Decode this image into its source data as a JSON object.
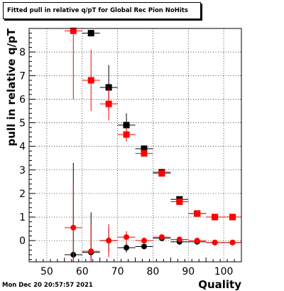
{
  "title": "Fitted pull in relative q/pT  for Global Rec Pion NoHits",
  "timestamp": "Mon Dec 20 20:57:57 2021",
  "chart_data": {
    "type": "scatter",
    "title": "Fitted pull in relative q/pT  for Global Rec Pion NoHits",
    "xlabel": "Quality",
    "ylabel": "pull in relative q/pT",
    "xlim": [
      45,
      105
    ],
    "ylim": [
      -0.9,
      9.0
    ],
    "grid": true,
    "x_ticks": [
      50,
      60,
      70,
      80,
      90,
      100
    ],
    "x_tick_labels": [
      "50",
      "60",
      "70",
      "80",
      "90",
      "100"
    ],
    "y_ticks": [
      0,
      1,
      2,
      3,
      4,
      5,
      6,
      7,
      8
    ],
    "y_tick_labels": [
      "0",
      "1",
      "2",
      "3",
      "4",
      "5",
      "6",
      "7",
      "8"
    ],
    "series": [
      {
        "color": "#000000",
        "marker": "square",
        "points": [
          {
            "x": 62.5,
            "y": 8.8,
            "ey": 0.0
          },
          {
            "x": 67.5,
            "y": 6.5,
            "ey": 0.95
          },
          {
            "x": 72.5,
            "y": 4.9,
            "ey": 0.5
          },
          {
            "x": 77.5,
            "y": 3.9,
            "ey": 0.12
          },
          {
            "x": 82.5,
            "y": 2.9,
            "ey": 0.07
          },
          {
            "x": 87.5,
            "y": 1.75,
            "ey": 0.05
          },
          {
            "x": 92.5,
            "y": 1.15,
            "ey": 0.03
          },
          {
            "x": 97.5,
            "y": 1.0,
            "ey": 0.02
          },
          {
            "x": 102.5,
            "y": 1.0,
            "ey": 0.02
          }
        ]
      },
      {
        "color": "#ff0000",
        "marker": "square",
        "points": [
          {
            "x": 57.5,
            "y": 8.9,
            "ey": 2.9
          },
          {
            "x": 62.5,
            "y": 6.8,
            "ey": 1.3
          },
          {
            "x": 67.5,
            "y": 5.8,
            "ey": 0.7
          },
          {
            "x": 72.5,
            "y": 4.5,
            "ey": 0.3
          },
          {
            "x": 77.5,
            "y": 3.7,
            "ey": 0.1
          },
          {
            "x": 82.5,
            "y": 2.85,
            "ey": 0.06
          },
          {
            "x": 87.5,
            "y": 1.65,
            "ey": 0.05
          },
          {
            "x": 92.5,
            "y": 1.15,
            "ey": 0.03
          },
          {
            "x": 97.5,
            "y": 1.0,
            "ey": 0.02
          },
          {
            "x": 102.5,
            "y": 1.0,
            "ey": 0.02
          }
        ]
      },
      {
        "color": "#000000",
        "marker": "circle",
        "points": [
          {
            "x": 57.5,
            "y": -0.6,
            "ey": 3.9
          },
          {
            "x": 62.5,
            "y": -0.5,
            "ey": 1.7
          },
          {
            "x": 67.5,
            "y": 0.0,
            "ey": 0.5
          },
          {
            "x": 72.5,
            "y": -0.3,
            "ey": 0.2
          },
          {
            "x": 77.5,
            "y": -0.25,
            "ey": 0.12
          },
          {
            "x": 82.5,
            "y": 0.1,
            "ey": 0.06
          },
          {
            "x": 87.5,
            "y": -0.05,
            "ey": 0.04
          },
          {
            "x": 92.5,
            "y": -0.05,
            "ey": 0.03
          },
          {
            "x": 97.5,
            "y": -0.08,
            "ey": 0.02
          },
          {
            "x": 102.5,
            "y": -0.08,
            "ey": 0.02
          }
        ]
      },
      {
        "color": "#ff0000",
        "marker": "circle",
        "points": [
          {
            "x": 57.5,
            "y": 0.55,
            "ey": 1.8
          },
          {
            "x": 62.5,
            "y": -0.45,
            "ey": 1.1
          },
          {
            "x": 67.5,
            "y": 0.0,
            "ey": 0.7
          },
          {
            "x": 72.5,
            "y": 0.15,
            "ey": 0.25
          },
          {
            "x": 77.5,
            "y": 0.0,
            "ey": 0.1
          },
          {
            "x": 82.5,
            "y": 0.15,
            "ey": 0.06
          },
          {
            "x": 87.5,
            "y": 0.05,
            "ey": 0.04
          },
          {
            "x": 92.5,
            "y": 0.0,
            "ey": 0.03
          },
          {
            "x": 97.5,
            "y": -0.08,
            "ey": 0.02
          },
          {
            "x": 102.5,
            "y": -0.08,
            "ey": 0.02
          }
        ]
      }
    ]
  }
}
